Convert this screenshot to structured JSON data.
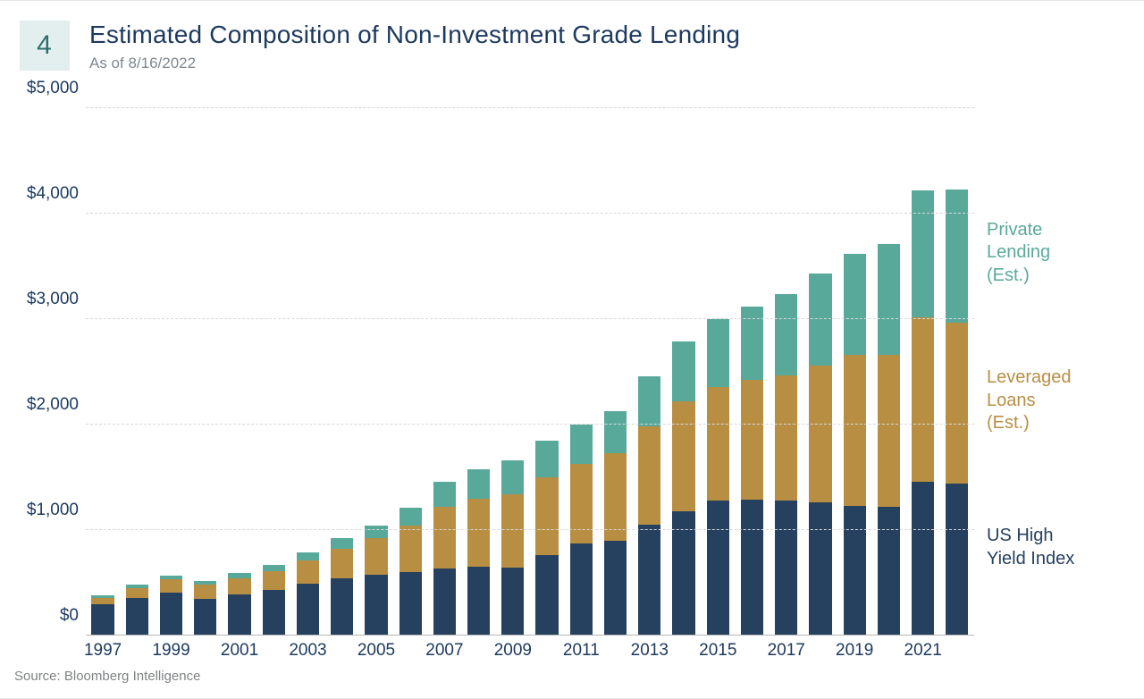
{
  "badge_number": "4",
  "title": "Estimated Composition of Non-Investment Grade Lending",
  "subtitle": "As of 8/16/2022",
  "source": "Source: Bloomberg Intelligence",
  "chart": {
    "type": "stacked-bar",
    "background_color": "#ffffff",
    "grid_color": "#d7d7d7",
    "axis_color": "#b9b9b9",
    "text_color": "#1c395e",
    "title_fontsize": 28,
    "label_fontsize": 19,
    "legend_fontsize": 20,
    "ylim": [
      0,
      5000
    ],
    "ytick_step": 1000,
    "y_tick_prefix": "$",
    "y_tick_thousands_sep": ",",
    "bar_width": 0.66,
    "years": [
      1997,
      1998,
      1999,
      2000,
      2001,
      2002,
      2003,
      2004,
      2005,
      2006,
      2007,
      2008,
      2009,
      2010,
      2011,
      2012,
      2013,
      2014,
      2015,
      2016,
      2017,
      2018,
      2019,
      2020,
      2021,
      2022
    ],
    "x_tick_years": [
      1997,
      1999,
      2001,
      2003,
      2005,
      2007,
      2009,
      2011,
      2013,
      2015,
      2017,
      2019,
      2021
    ],
    "series": [
      {
        "key": "us_high_yield",
        "label": "US High\nYield Index",
        "color": "#26415f",
        "values": [
          300,
          360,
          410,
          350,
          390,
          430,
          490,
          540,
          580,
          600,
          640,
          650,
          640,
          760,
          870,
          900,
          1050,
          1180,
          1280,
          1290,
          1280,
          1260,
          1230,
          1220,
          1460,
          1440
        ]
      },
      {
        "key": "leveraged_loans",
        "label": "Leveraged\nLoans\n(Est.)",
        "color": "#b88e43",
        "values": [
          60,
          90,
          120,
          130,
          150,
          180,
          220,
          280,
          340,
          440,
          580,
          650,
          700,
          740,
          760,
          830,
          930,
          1040,
          1080,
          1130,
          1190,
          1300,
          1430,
          1440,
          1560,
          1530
        ]
      },
      {
        "key": "private_lending",
        "label": "Private\nLending\n(Est.)",
        "color": "#59a99a",
        "values": [
          20,
          30,
          40,
          40,
          50,
          60,
          80,
          100,
          120,
          170,
          240,
          280,
          320,
          350,
          370,
          400,
          480,
          570,
          640,
          700,
          770,
          870,
          960,
          1050,
          1200,
          1260
        ]
      }
    ],
    "legend_positions_pct": [
      21,
      49,
      79
    ]
  }
}
